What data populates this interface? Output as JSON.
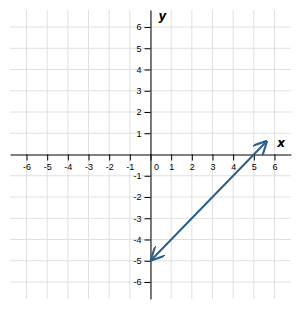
{
  "chart_data": {
    "type": "line",
    "x": [
      0.05,
      5.6
    ],
    "values": [
      -4.95,
      0.6
    ],
    "color": "#2B5F8A",
    "x_label": "x",
    "y_label": "y",
    "xlim": [
      -6.8,
      6.8
    ],
    "ylim": [
      -6.8,
      6.8
    ],
    "xticks": [
      -6,
      -5,
      -4,
      -3,
      -2,
      -1,
      0,
      1,
      2,
      3,
      4,
      5,
      6
    ],
    "yticks": [
      -6,
      -5,
      -4,
      -3,
      -2,
      -1,
      1,
      2,
      3,
      4,
      5,
      6
    ],
    "grid": true
  }
}
